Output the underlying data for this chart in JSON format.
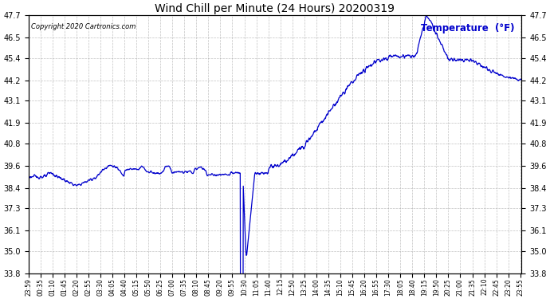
{
  "title": "Wind Chill per Minute (24 Hours) 20200319",
  "copyright": "Copyright 2020 Cartronics.com",
  "legend_label": "Temperature  (°F)",
  "line_color": "#0000cc",
  "background_color": "#ffffff",
  "grid_color": "#999999",
  "ylim": [
    33.8,
    47.7
  ],
  "yticks": [
    33.8,
    35.0,
    36.1,
    37.3,
    38.4,
    39.6,
    40.8,
    41.9,
    43.1,
    44.2,
    45.4,
    46.5,
    47.7
  ],
  "xtick_labels": [
    "23:59",
    "00:35",
    "01:10",
    "01:45",
    "02:20",
    "02:55",
    "03:30",
    "04:05",
    "04:40",
    "05:15",
    "05:50",
    "06:25",
    "07:00",
    "07:35",
    "08:10",
    "08:45",
    "09:20",
    "09:55",
    "10:30",
    "11:05",
    "11:40",
    "12:15",
    "12:50",
    "13:25",
    "14:00",
    "14:35",
    "15:10",
    "15:45",
    "16:20",
    "16:55",
    "17:30",
    "18:05",
    "18:40",
    "19:15",
    "19:50",
    "20:25",
    "21:00",
    "21:35",
    "22:10",
    "22:45",
    "23:20",
    "23:55"
  ],
  "figwidth": 6.9,
  "figheight": 3.75,
  "dpi": 100
}
